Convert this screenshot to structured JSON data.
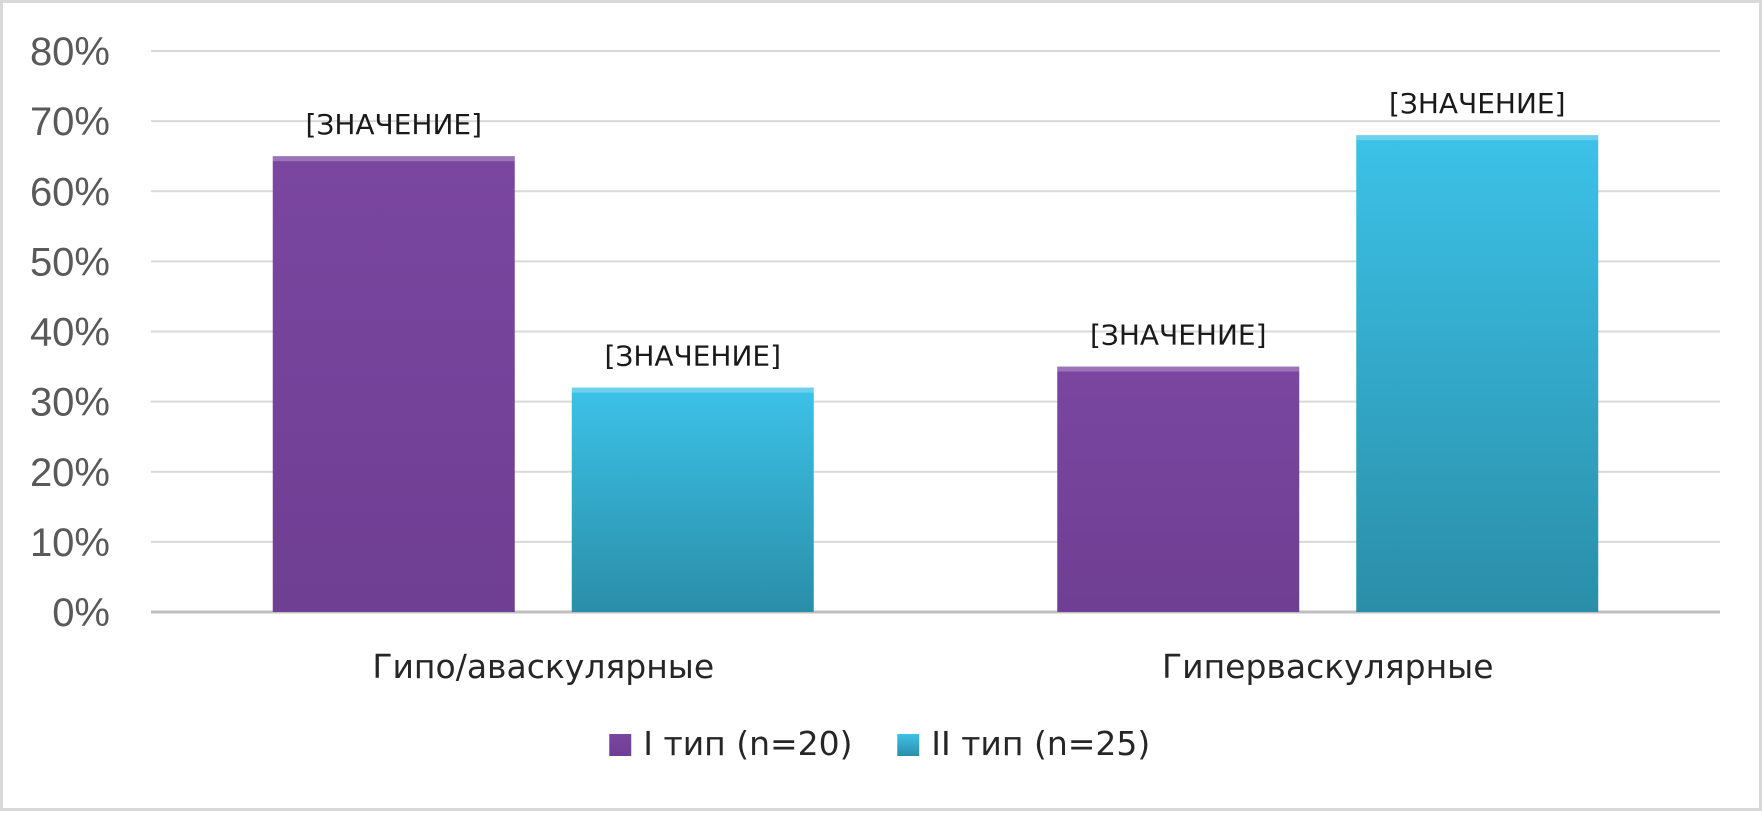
{
  "chart_data": {
    "type": "bar",
    "categories": [
      "Гипо/аваскулярные",
      "Гиперваскулярные"
    ],
    "series": [
      {
        "name": "I тип (n=20)",
        "values": [
          65,
          35
        ],
        "color": "#76439b",
        "data_label": "[ЗНАЧЕНИЕ]"
      },
      {
        "name": "II тип (n=25)",
        "values": [
          32,
          68
        ],
        "color": "#38bde3",
        "color_dark": "#2a8ea8",
        "data_label": "[ЗНАЧЕНИЕ]"
      }
    ],
    "y_ticks": [
      "0%",
      "10%",
      "20%",
      "30%",
      "40%",
      "50%",
      "60%",
      "70%",
      "80%"
    ],
    "ylim": [
      0,
      80
    ],
    "grid": true,
    "legend_position": "bottom"
  }
}
